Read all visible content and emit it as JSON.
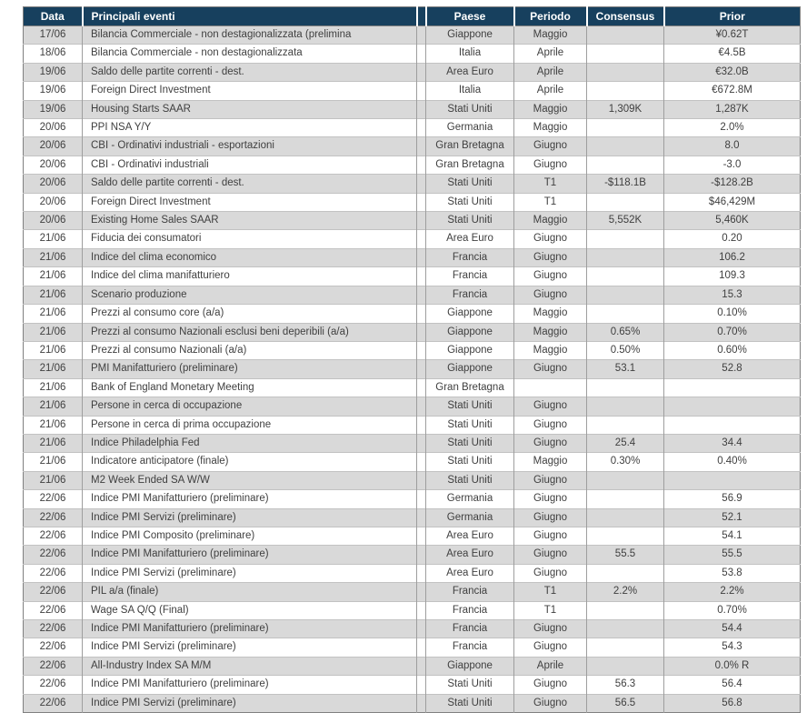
{
  "table": {
    "columns": {
      "data": "Data",
      "evento": "Principali eventi",
      "gap": "",
      "paese": "Paese",
      "periodo": "Periodo",
      "consensus": "Consensus",
      "prior": "Prior"
    },
    "rows": [
      {
        "data": "17/06",
        "evento": "Bilancia Commerciale -  non destagionalizzata (prelimina",
        "paese": "Giappone",
        "periodo": "Maggio",
        "consensus": "",
        "prior": "¥0.62T"
      },
      {
        "data": "18/06",
        "evento": "Bilancia Commerciale - non destagionalizzata",
        "paese": "Italia",
        "periodo": "Aprile",
        "consensus": "",
        "prior": "€4.5B"
      },
      {
        "data": "19/06",
        "evento": "Saldo delle partite correnti - dest.",
        "paese": "Area Euro",
        "periodo": "Aprile",
        "consensus": "",
        "prior": "€32.0B"
      },
      {
        "data": "19/06",
        "evento": "Foreign Direct Investment",
        "paese": "Italia",
        "periodo": "Aprile",
        "consensus": "",
        "prior": "€672.8M"
      },
      {
        "data": "19/06",
        "evento": "Housing Starts SAAR",
        "paese": "Stati Uniti",
        "periodo": "Maggio",
        "consensus": "1,309K",
        "prior": "1,287K"
      },
      {
        "data": "20/06",
        "evento": "PPI NSA Y/Y",
        "paese": "Germania",
        "periodo": "Maggio",
        "consensus": "",
        "prior": "2.0%"
      },
      {
        "data": "20/06",
        "evento": "CBI - Ordinativi industriali - esportazioni",
        "paese": "Gran Bretagna",
        "periodo": "Giugno",
        "consensus": "",
        "prior": "8.0"
      },
      {
        "data": "20/06",
        "evento": "CBI - Ordinativi industriali",
        "paese": "Gran Bretagna",
        "periodo": "Giugno",
        "consensus": "",
        "prior": "-3.0"
      },
      {
        "data": "20/06",
        "evento": "Saldo delle partite correnti - dest.",
        "paese": "Stati Uniti",
        "periodo": "T1",
        "consensus": "-$118.1B",
        "prior": "-$128.2B"
      },
      {
        "data": "20/06",
        "evento": "Foreign Direct Investment",
        "paese": "Stati Uniti",
        "periodo": "T1",
        "consensus": "",
        "prior": "$46,429M"
      },
      {
        "data": "20/06",
        "evento": "Existing Home Sales SAAR",
        "paese": "Stati Uniti",
        "periodo": "Maggio",
        "consensus": "5,552K",
        "prior": "5,460K"
      },
      {
        "data": "21/06",
        "evento": "Fiducia dei consumatori",
        "paese": "Area Euro",
        "periodo": "Giugno",
        "consensus": "",
        "prior": "0.20"
      },
      {
        "data": "21/06",
        "evento": "Indice del clima economico",
        "paese": "Francia",
        "periodo": "Giugno",
        "consensus": "",
        "prior": "106.2"
      },
      {
        "data": "21/06",
        "evento": "Indice del clima manifatturiero",
        "paese": "Francia",
        "periodo": "Giugno",
        "consensus": "",
        "prior": "109.3"
      },
      {
        "data": "21/06",
        "evento": "Scenario produzione",
        "paese": "Francia",
        "periodo": "Giugno",
        "consensus": "",
        "prior": "15.3"
      },
      {
        "data": "21/06",
        "evento": "Prezzi al consumo core (a/a)",
        "paese": "Giappone",
        "periodo": "Maggio",
        "consensus": "",
        "prior": "0.10%"
      },
      {
        "data": "21/06",
        "evento": "Prezzi al consumo Nazionali esclusi beni deperibili (a/a)",
        "paese": "Giappone",
        "periodo": "Maggio",
        "consensus": "0.65%",
        "prior": "0.70%"
      },
      {
        "data": "21/06",
        "evento": "Prezzi al consumo Nazionali (a/a)",
        "paese": "Giappone",
        "periodo": "Maggio",
        "consensus": "0.50%",
        "prior": "0.60%"
      },
      {
        "data": "21/06",
        "evento": "PMI Manifatturiero (preliminare)",
        "paese": "Giappone",
        "periodo": "Giugno",
        "consensus": "53.1",
        "prior": "52.8"
      },
      {
        "data": "21/06",
        "evento": "Bank of England Monetary Meeting",
        "paese": "Gran Bretagna",
        "periodo": "",
        "consensus": "",
        "prior": ""
      },
      {
        "data": "21/06",
        "evento": "Persone in cerca di occupazione",
        "paese": "Stati Uniti",
        "periodo": "Giugno",
        "consensus": "",
        "prior": ""
      },
      {
        "data": "21/06",
        "evento": "Persone in cerca di prima occupazione",
        "paese": "Stati Uniti",
        "periodo": "Giugno",
        "consensus": "",
        "prior": ""
      },
      {
        "data": "21/06",
        "evento": "Indice Philadelphia Fed",
        "paese": "Stati Uniti",
        "periodo": "Giugno",
        "consensus": "25.4",
        "prior": "34.4"
      },
      {
        "data": "21/06",
        "evento": "Indicatore anticipatore (finale)",
        "paese": "Stati Uniti",
        "periodo": "Maggio",
        "consensus": "0.30%",
        "prior": "0.40%"
      },
      {
        "data": "21/06",
        "evento": "M2 Week Ended SA W/W",
        "paese": "Stati Uniti",
        "periodo": "Giugno",
        "consensus": "",
        "prior": ""
      },
      {
        "data": "22/06",
        "evento": "Indice PMI Manifatturiero (preliminare)",
        "paese": "Germania",
        "periodo": "Giugno",
        "consensus": "",
        "prior": "56.9"
      },
      {
        "data": "22/06",
        "evento": "Indice PMI Servizi (preliminare)",
        "paese": "Germania",
        "periodo": "Giugno",
        "consensus": "",
        "prior": "52.1"
      },
      {
        "data": "22/06",
        "evento": "Indice PMI Composito (preliminare)",
        "paese": "Area Euro",
        "periodo": "Giugno",
        "consensus": "",
        "prior": "54.1"
      },
      {
        "data": "22/06",
        "evento": "Indice PMI Manifatturiero (preliminare)",
        "paese": "Area Euro",
        "periodo": "Giugno",
        "consensus": "55.5",
        "prior": "55.5"
      },
      {
        "data": "22/06",
        "evento": "Indice PMI Servizi (preliminare)",
        "paese": "Area Euro",
        "periodo": "Giugno",
        "consensus": "",
        "prior": "53.8"
      },
      {
        "data": "22/06",
        "evento": "PIL a/a (finale)",
        "paese": "Francia",
        "periodo": "T1",
        "consensus": "2.2%",
        "prior": "2.2%"
      },
      {
        "data": "22/06",
        "evento": "Wage SA Q/Q (Final)",
        "paese": "Francia",
        "periodo": "T1",
        "consensus": "",
        "prior": "0.70%"
      },
      {
        "data": "22/06",
        "evento": "Indice PMI Manifatturiero (preliminare)",
        "paese": "Francia",
        "periodo": "Giugno",
        "consensus": "",
        "prior": "54.4"
      },
      {
        "data": "22/06",
        "evento": "Indice PMI Servizi (preliminare)",
        "paese": "Francia",
        "periodo": "Giugno",
        "consensus": "",
        "prior": "54.3"
      },
      {
        "data": "22/06",
        "evento": "All-Industry Index SA M/M",
        "paese": "Giappone",
        "periodo": "Aprile",
        "consensus": "",
        "prior": "0.0% R"
      },
      {
        "data": "22/06",
        "evento": "Indice PMI Manifatturiero (preliminare)",
        "paese": "Stati Uniti",
        "periodo": "Giugno",
        "consensus": "56.3",
        "prior": "56.4"
      },
      {
        "data": "22/06",
        "evento": "Indice PMI Servizi (preliminare)",
        "paese": "Stati Uniti",
        "periodo": "Giugno",
        "consensus": "56.5",
        "prior": "56.8"
      }
    ]
  },
  "colors": {
    "header_bg": "#17405E",
    "row_stripe": "#D9D9D9",
    "body_text": "#3F3F3F"
  }
}
